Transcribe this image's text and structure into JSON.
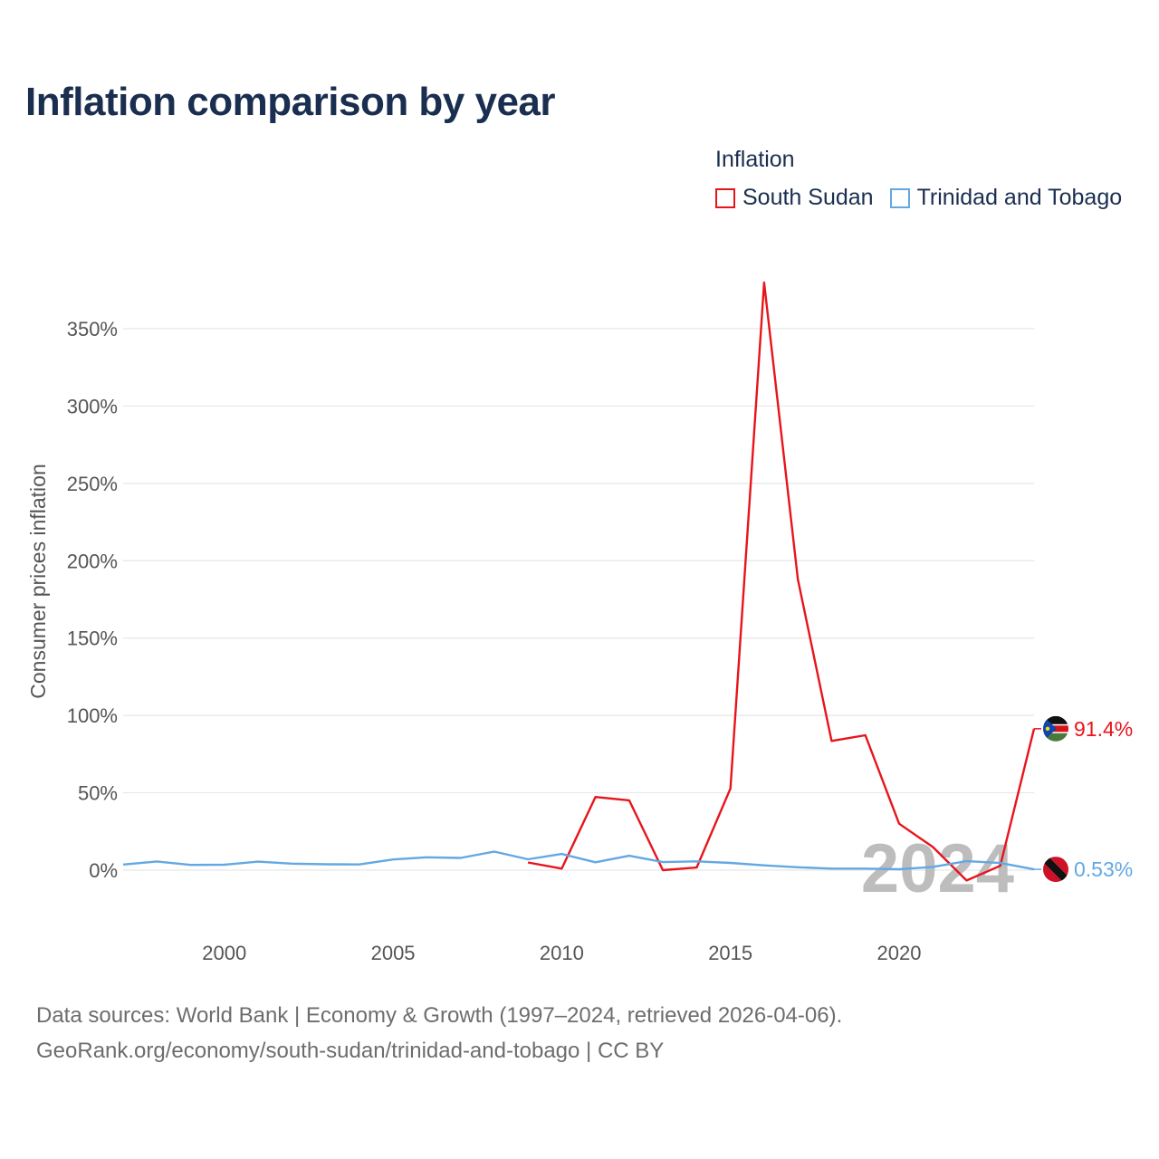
{
  "title": "Inflation comparison by year",
  "legend": {
    "title": "Inflation",
    "items": [
      {
        "label": "South Sudan",
        "color": "#e8141b"
      },
      {
        "label": "Trinidad and Tobago",
        "color": "#62a8e3"
      }
    ]
  },
  "footer": {
    "line1": "Data sources: World Bank | Economy & Growth (1997–2024, retrieved 2026-04-06).",
    "line2": "GeoRank.org/economy/south-sudan/trinidad-and-tobago | CC BY"
  },
  "chart_data": {
    "type": "line",
    "title": "Inflation comparison by year",
    "ylabel": "Consumer prices inflation",
    "xlabel": "",
    "xlim": [
      1997,
      2024
    ],
    "ylim": [
      -30,
      385
    ],
    "yticks": [
      0,
      50,
      100,
      150,
      200,
      250,
      300,
      350
    ],
    "ytick_labels": [
      "0%",
      "50%",
      "100%",
      "150%",
      "200%",
      "250%",
      "300%",
      "350%"
    ],
    "xticks": [
      2000,
      2005,
      2010,
      2015,
      2020
    ],
    "xtick_labels": [
      "2000",
      "2005",
      "2010",
      "2015",
      "2020"
    ],
    "watermark": "2024",
    "series": [
      {
        "name": "South Sudan",
        "color": "#e8141b",
        "end_label": "91.4%",
        "flag": "south-sudan",
        "x": [
          2009,
          2010,
          2011,
          2012,
          2013,
          2014,
          2015,
          2016,
          2017,
          2018,
          2019,
          2020,
          2021,
          2022,
          2023,
          2024
        ],
        "y": [
          5,
          1,
          47.3,
          45.1,
          0,
          1.7,
          52.8,
          379.8,
          187.9,
          83.5,
          87.2,
          30,
          15,
          -6.7,
          2.8,
          91.4
        ]
      },
      {
        "name": "Trinidad and Tobago",
        "color": "#62a8e3",
        "end_label": "0.53%",
        "flag": "trinidad-and-tobago",
        "x": [
          1997,
          1998,
          1999,
          2000,
          2001,
          2002,
          2003,
          2004,
          2005,
          2006,
          2007,
          2008,
          2009,
          2010,
          2011,
          2012,
          2013,
          2014,
          2015,
          2016,
          2017,
          2018,
          2019,
          2020,
          2021,
          2022,
          2023,
          2024
        ],
        "y": [
          3.6,
          5.6,
          3.4,
          3.5,
          5.5,
          4.2,
          3.8,
          3.7,
          6.9,
          8.3,
          7.9,
          12,
          7,
          10.5,
          5.1,
          9.3,
          5.2,
          5.7,
          4.7,
          3.1,
          1.9,
          1,
          1,
          0.6,
          2.1,
          5.8,
          4.6,
          0.53
        ]
      }
    ]
  }
}
